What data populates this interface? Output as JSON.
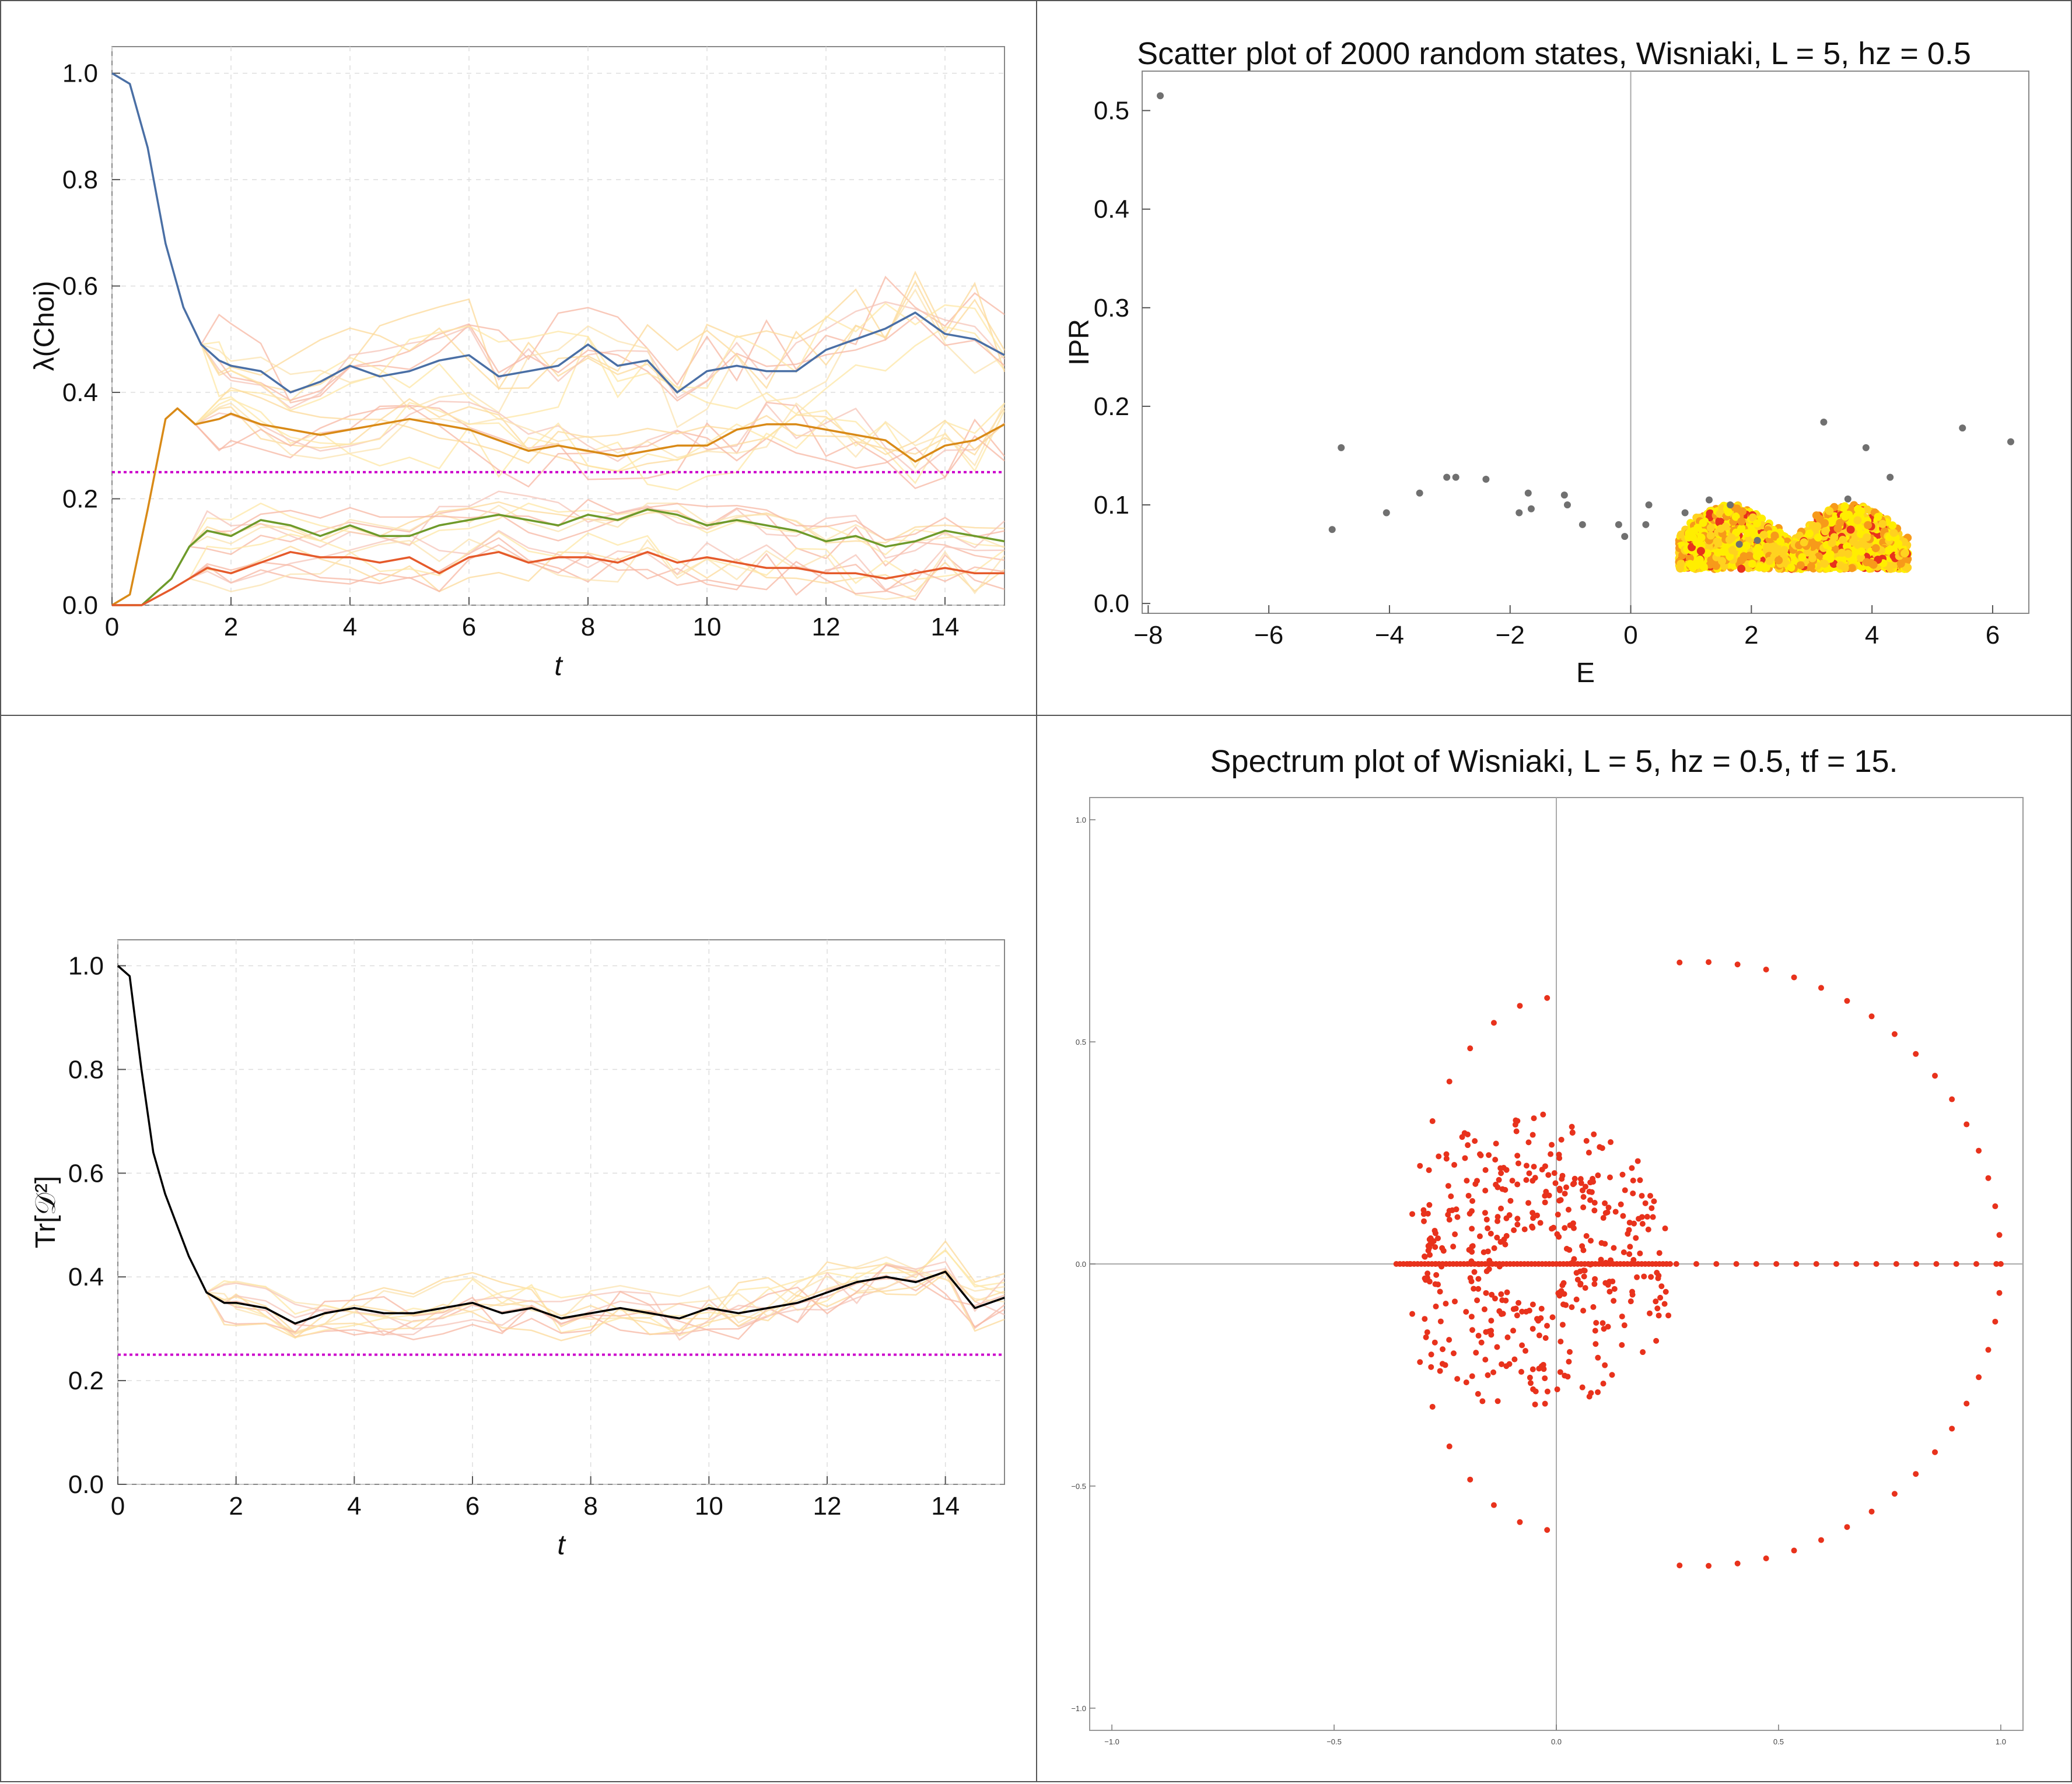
{
  "chart_data": [
    {
      "id": "choi",
      "type": "line",
      "xlabel": "t",
      "ylabel": "λ(Choi)",
      "xlim": [
        0,
        15
      ],
      "ylim": [
        0,
        1.05
      ],
      "xticks": [
        "0",
        "2",
        "4",
        "6",
        "8",
        "10",
        "12",
        "14"
      ],
      "yticks": [
        "0.0",
        "0.2",
        "0.4",
        "0.6",
        "0.8",
        "1.0"
      ],
      "grid": "dashed",
      "reference_line": {
        "y": 0.25,
        "color": "#cc00cc",
        "style": "dotted"
      },
      "series": [
        {
          "color": "#4a6fa5",
          "x": [
            0,
            0.3,
            0.6,
            0.9,
            1.2,
            1.5,
            1.8,
            2.0,
            2.5,
            3.0,
            3.5,
            4.0,
            4.5,
            5.0,
            5.5,
            6.0,
            6.5,
            7.0,
            7.5,
            8.0,
            8.5,
            9.0,
            9.5,
            10.0,
            10.5,
            11.0,
            11.5,
            12.0,
            12.5,
            13.0,
            13.5,
            14.0,
            14.5,
            15.0
          ],
          "y": [
            1.0,
            0.98,
            0.86,
            0.68,
            0.56,
            0.49,
            0.46,
            0.45,
            0.44,
            0.4,
            0.42,
            0.45,
            0.43,
            0.44,
            0.46,
            0.47,
            0.43,
            0.44,
            0.45,
            0.49,
            0.45,
            0.46,
            0.4,
            0.44,
            0.45,
            0.44,
            0.44,
            0.48,
            0.5,
            0.52,
            0.55,
            0.51,
            0.5,
            0.47
          ]
        },
        {
          "color": "#d98a17",
          "x": [
            0,
            0.3,
            0.6,
            0.9,
            1.1,
            1.4,
            1.8,
            2.0,
            2.5,
            3.0,
            3.5,
            4.0,
            4.5,
            5.0,
            5.5,
            6.0,
            6.5,
            7.0,
            7.5,
            8.0,
            8.5,
            9.0,
            9.5,
            10.0,
            10.5,
            11.0,
            11.5,
            12.0,
            12.5,
            13.0,
            13.5,
            14.0,
            14.5,
            15.0
          ],
          "y": [
            0.0,
            0.02,
            0.18,
            0.35,
            0.37,
            0.34,
            0.35,
            0.36,
            0.34,
            0.33,
            0.32,
            0.33,
            0.34,
            0.35,
            0.34,
            0.33,
            0.31,
            0.29,
            0.3,
            0.29,
            0.28,
            0.29,
            0.3,
            0.3,
            0.33,
            0.34,
            0.34,
            0.33,
            0.32,
            0.31,
            0.27,
            0.3,
            0.31,
            0.34
          ]
        },
        {
          "color": "#6e9a2a",
          "x": [
            0,
            0.5,
            1.0,
            1.3,
            1.6,
            2.0,
            2.5,
            3.0,
            3.5,
            4.0,
            4.5,
            5.0,
            5.5,
            6.0,
            6.5,
            7.0,
            7.5,
            8.0,
            8.5,
            9.0,
            9.5,
            10.0,
            10.5,
            11.0,
            11.5,
            12.0,
            12.5,
            13.0,
            13.5,
            14.0,
            14.5,
            15.0
          ],
          "y": [
            0.0,
            0.0,
            0.05,
            0.11,
            0.14,
            0.13,
            0.16,
            0.15,
            0.13,
            0.15,
            0.13,
            0.13,
            0.15,
            0.16,
            0.17,
            0.16,
            0.15,
            0.17,
            0.16,
            0.18,
            0.17,
            0.15,
            0.16,
            0.15,
            0.14,
            0.12,
            0.13,
            0.11,
            0.12,
            0.14,
            0.13,
            0.12
          ]
        },
        {
          "color": "#e55a2b",
          "x": [
            0,
            0.5,
            1.0,
            1.3,
            1.6,
            2.0,
            2.5,
            3.0,
            3.5,
            4.0,
            4.5,
            5.0,
            5.5,
            6.0,
            6.5,
            7.0,
            7.5,
            8.0,
            8.5,
            9.0,
            9.5,
            10.0,
            10.5,
            11.0,
            11.5,
            12.0,
            12.5,
            13.0,
            13.5,
            14.0,
            14.5,
            15.0
          ],
          "y": [
            0.0,
            0.0,
            0.03,
            0.05,
            0.07,
            0.06,
            0.08,
            0.1,
            0.09,
            0.09,
            0.08,
            0.09,
            0.06,
            0.09,
            0.1,
            0.08,
            0.09,
            0.09,
            0.08,
            0.1,
            0.08,
            0.09,
            0.08,
            0.07,
            0.07,
            0.06,
            0.06,
            0.05,
            0.06,
            0.07,
            0.06,
            0.06
          ]
        }
      ]
    },
    {
      "id": "ipr",
      "type": "scatter",
      "title": "Scatter plot of 2000 random states, Wisniaki, L = 5, hz = 0.5",
      "xlabel": "E",
      "ylabel": "IPR",
      "xlim": [
        -8.1,
        6.6
      ],
      "ylim": [
        -0.01,
        0.54
      ],
      "xticks": [
        "−8",
        "−6",
        "−4",
        "−2",
        "0",
        "2",
        "4",
        "6"
      ],
      "yticks": [
        "0.0",
        "0.1",
        "0.2",
        "0.3",
        "0.4",
        "0.5"
      ],
      "eigenstates": {
        "color": "#707070",
        "points": [
          [
            -7.8,
            0.515
          ],
          [
            -4.95,
            0.075
          ],
          [
            -4.8,
            0.158
          ],
          [
            -4.05,
            0.092
          ],
          [
            -3.5,
            0.112
          ],
          [
            -3.05,
            0.128
          ],
          [
            -2.9,
            0.128
          ],
          [
            -2.4,
            0.126
          ],
          [
            -1.85,
            0.092
          ],
          [
            -1.7,
            0.112
          ],
          [
            -1.65,
            0.096
          ],
          [
            -1.1,
            0.11
          ],
          [
            -1.05,
            0.1
          ],
          [
            -0.8,
            0.08
          ],
          [
            -0.2,
            0.08
          ],
          [
            -0.1,
            0.068
          ],
          [
            0.25,
            0.08
          ],
          [
            0.3,
            0.1
          ],
          [
            0.9,
            0.092
          ],
          [
            1.3,
            0.105
          ],
          [
            1.65,
            0.1
          ],
          [
            1.8,
            0.06
          ],
          [
            2.1,
            0.064
          ],
          [
            3.2,
            0.184
          ],
          [
            3.6,
            0.106
          ],
          [
            3.9,
            0.158
          ],
          [
            4.3,
            0.128
          ],
          [
            5.5,
            0.178
          ],
          [
            6.3,
            0.164
          ]
        ]
      },
      "random_states": {
        "colors": [
          "#e8321c",
          "#f79a1a",
          "#ffd21f",
          "#ffee00"
        ],
        "count": 2000,
        "E_range": [
          0.8,
          4.6
        ],
        "IPR_range": [
          0.035,
          0.1
        ]
      }
    },
    {
      "id": "purity",
      "type": "line",
      "xlabel": "t",
      "ylabel": "Tr[𝒟²]",
      "xlim": [
        0,
        15
      ],
      "ylim": [
        0,
        1.05
      ],
      "xticks": [
        "0",
        "2",
        "4",
        "6",
        "8",
        "10",
        "12",
        "14"
      ],
      "yticks": [
        "0.0",
        "0.2",
        "0.4",
        "0.6",
        "0.8",
        "1.0"
      ],
      "grid": "dashed",
      "reference_line": {
        "y": 0.25,
        "color": "#cc00cc",
        "style": "dotted"
      },
      "series": [
        {
          "color": "#000000",
          "x": [
            0,
            0.2,
            0.4,
            0.6,
            0.8,
            1.0,
            1.2,
            1.5,
            1.8,
            2.0,
            2.5,
            3.0,
            3.5,
            4.0,
            4.5,
            5.0,
            5.5,
            6.0,
            6.5,
            7.0,
            7.5,
            8.0,
            8.5,
            9.0,
            9.5,
            10.0,
            10.5,
            11.0,
            11.5,
            12.0,
            12.5,
            13.0,
            13.5,
            14.0,
            14.5,
            15.0
          ],
          "y": [
            1.0,
            0.98,
            0.8,
            0.64,
            0.56,
            0.5,
            0.44,
            0.37,
            0.35,
            0.35,
            0.34,
            0.31,
            0.33,
            0.34,
            0.33,
            0.33,
            0.34,
            0.35,
            0.33,
            0.34,
            0.32,
            0.33,
            0.34,
            0.33,
            0.32,
            0.34,
            0.33,
            0.34,
            0.35,
            0.37,
            0.39,
            0.4,
            0.39,
            0.41,
            0.34,
            0.36
          ]
        }
      ]
    },
    {
      "id": "spectrum",
      "type": "scatter",
      "title": "Spectrum plot of Wisniaki, L = 5, hz = 0.5, tf = 15.",
      "xlim": [
        -1.05,
        1.05
      ],
      "ylim": [
        -1.05,
        1.05
      ],
      "xticks": [
        "−1.0",
        "−0.5",
        "0.0",
        "0.5",
        "1.0"
      ],
      "yticks": [
        "−1.0",
        "−0.5",
        "0.0",
        "0.5",
        "1.0"
      ],
      "point_color": "#e8321c"
    }
  ]
}
